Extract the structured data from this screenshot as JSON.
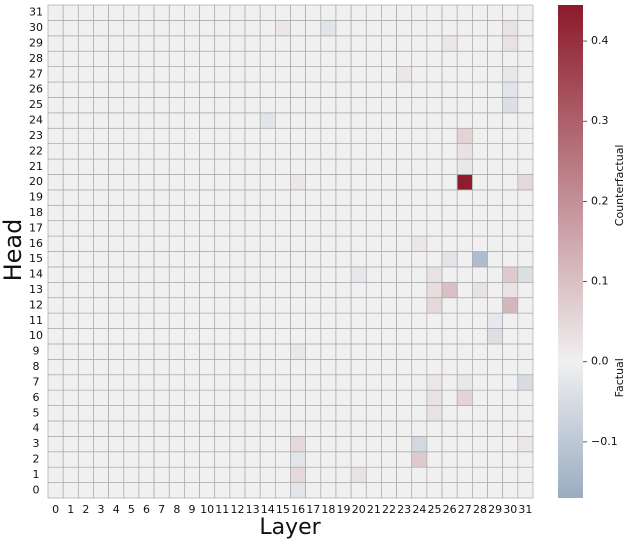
{
  "chart_data": {
    "type": "heatmap",
    "x_label": "Layer",
    "y_label": "Head",
    "x_categories": [
      0,
      1,
      2,
      3,
      4,
      5,
      6,
      7,
      8,
      9,
      10,
      11,
      12,
      13,
      14,
      15,
      16,
      17,
      18,
      19,
      20,
      21,
      22,
      23,
      24,
      25,
      26,
      27,
      28,
      29,
      30,
      31
    ],
    "y_categories": [
      0,
      1,
      2,
      3,
      4,
      5,
      6,
      7,
      8,
      9,
      10,
      11,
      12,
      13,
      14,
      15,
      16,
      17,
      18,
      19,
      20,
      21,
      22,
      23,
      24,
      25,
      26,
      27,
      28,
      29,
      30,
      31
    ],
    "values": [
      [
        0,
        0,
        0,
        0,
        0,
        0,
        0,
        0,
        0,
        0,
        0,
        0,
        0,
        0,
        0,
        0,
        -0.03,
        0,
        0,
        0,
        0,
        0,
        0,
        0,
        0,
        0,
        0,
        0,
        0,
        0,
        0,
        0
      ],
      [
        0,
        0,
        0,
        0,
        0,
        0,
        0,
        0,
        0,
        0,
        0,
        0,
        0,
        0,
        0,
        0,
        0.05,
        0,
        0,
        0,
        0.03,
        0,
        0,
        0,
        0,
        0,
        0,
        0,
        0,
        0,
        0,
        0
      ],
      [
        0,
        0,
        0,
        0,
        0,
        0,
        0,
        0,
        0,
        0,
        0,
        0,
        0,
        0,
        0,
        0,
        -0.03,
        0,
        0,
        0,
        0,
        0,
        0,
        0,
        0.08,
        0,
        0,
        0,
        0,
        0,
        0,
        0
      ],
      [
        0,
        0,
        0,
        0,
        0,
        0,
        0,
        0,
        0,
        0,
        0,
        0,
        0,
        0,
        0,
        0,
        0.05,
        0,
        0,
        0,
        0,
        0,
        0,
        0,
        -0.06,
        0,
        0,
        0,
        0,
        0,
        0,
        0.02
      ],
      [
        0,
        0,
        0,
        0,
        0,
        0,
        0,
        0,
        0,
        0,
        0,
        0,
        0,
        0,
        0,
        0,
        0,
        0,
        0,
        0,
        0,
        0,
        0,
        0,
        0,
        0,
        0,
        0,
        0,
        0,
        0,
        0
      ],
      [
        0,
        0,
        0,
        0,
        0,
        0,
        0,
        0,
        0,
        0,
        0,
        0,
        0,
        0,
        0,
        0,
        0,
        0,
        0,
        0,
        0,
        0,
        0,
        0,
        0,
        0.03,
        0,
        0,
        0,
        0,
        0,
        0
      ],
      [
        0,
        0,
        0,
        0,
        0,
        0,
        0,
        0,
        0,
        0,
        0,
        0,
        0,
        0,
        0,
        0,
        0,
        0,
        0,
        0,
        0,
        0,
        0,
        0,
        0,
        0.03,
        0,
        0.06,
        0,
        0,
        0,
        0
      ],
      [
        0,
        0,
        0,
        0,
        0,
        0,
        0,
        0,
        0,
        0,
        0,
        0,
        0,
        0,
        0,
        0,
        0,
        0,
        0,
        0,
        0,
        0,
        0,
        0,
        0,
        0.02,
        0,
        -0.02,
        0,
        0,
        0,
        -0.05
      ],
      [
        0,
        0,
        0,
        0,
        0,
        0,
        0,
        0,
        0,
        0,
        0,
        0,
        0,
        0,
        0,
        0,
        0,
        0,
        0,
        0,
        0,
        0,
        0,
        0,
        0,
        0,
        0,
        0,
        0,
        0,
        0,
        0
      ],
      [
        0,
        0,
        0,
        0,
        0,
        0,
        0,
        0,
        0,
        0,
        0,
        0,
        0,
        0,
        0,
        0,
        -0.02,
        0,
        0,
        0,
        0,
        0,
        0,
        0,
        0,
        0,
        0,
        0,
        0,
        0,
        0,
        0
      ],
      [
        0,
        0,
        0,
        0,
        0,
        0,
        0,
        0,
        0,
        0,
        0,
        0,
        0,
        0,
        0,
        0,
        0,
        0,
        0,
        0,
        0,
        0,
        0,
        0,
        0,
        0,
        0,
        0,
        0,
        -0.04,
        0,
        0
      ],
      [
        0,
        0,
        0,
        0,
        0,
        0,
        0,
        0,
        0,
        0,
        0,
        0,
        0,
        0,
        0,
        0,
        0,
        0,
        0,
        0,
        0,
        0,
        0,
        0,
        0,
        0,
        0,
        0,
        0,
        -0.02,
        0,
        0
      ],
      [
        0,
        0,
        0,
        0,
        0,
        0,
        0,
        0,
        0,
        0,
        0,
        0,
        0,
        0,
        0,
        0,
        0,
        0,
        0,
        0,
        0,
        0,
        0,
        0,
        0,
        0.05,
        0,
        0,
        0,
        0,
        0.12,
        0
      ],
      [
        0,
        0,
        0,
        0,
        0,
        0,
        0,
        0,
        0,
        0,
        0,
        0,
        0,
        0,
        0,
        0,
        0,
        0,
        0,
        0,
        0,
        0,
        0,
        0,
        0,
        0.04,
        0.1,
        0,
        0.03,
        0,
        0.03,
        0
      ],
      [
        0,
        0,
        0,
        0,
        0,
        0,
        0,
        0,
        0,
        0,
        0,
        0,
        0,
        0,
        0,
        0,
        0,
        0,
        0,
        0,
        -0.02,
        0,
        0,
        0,
        0,
        0.03,
        0,
        0,
        0,
        0,
        0.08,
        -0.04
      ],
      [
        0,
        0,
        0,
        0,
        0,
        0,
        0,
        0,
        0,
        0,
        0,
        0,
        0,
        0,
        0,
        0,
        0,
        0,
        0,
        0,
        0,
        0,
        0,
        0,
        0,
        0,
        -0.03,
        0,
        -0.13,
        0,
        0,
        0
      ],
      [
        0,
        0,
        0,
        0,
        0,
        0,
        0,
        0,
        0,
        0,
        0,
        0,
        0,
        0,
        0,
        0,
        0,
        0,
        0,
        0,
        0,
        0,
        0,
        0,
        0.02,
        0,
        0,
        0,
        0,
        0,
        0,
        0
      ],
      [
        0,
        0,
        0,
        0,
        0,
        0,
        0,
        0,
        0,
        0,
        0,
        0,
        0,
        0,
        0,
        0,
        0,
        0,
        0,
        0,
        0,
        0,
        0,
        0,
        0,
        0,
        0,
        0,
        0,
        0,
        0,
        0
      ],
      [
        0,
        0,
        0,
        0,
        0,
        0,
        0,
        0,
        0,
        0,
        0,
        0,
        0,
        0,
        0,
        0,
        0,
        0,
        0,
        0,
        0,
        0,
        0,
        0,
        0,
        0,
        0,
        0,
        0,
        0,
        0,
        0
      ],
      [
        0,
        0,
        0,
        0,
        0,
        0,
        0,
        0,
        0,
        0,
        0,
        0,
        0,
        0,
        0,
        0,
        0,
        0,
        0,
        0,
        0,
        0,
        0,
        0,
        0,
        0,
        0,
        0,
        0,
        0,
        0,
        0
      ],
      [
        0,
        0,
        0,
        0,
        0,
        0,
        0,
        0,
        0,
        0,
        0,
        0,
        0,
        0,
        0,
        0,
        0.02,
        0,
        0,
        0,
        0,
        0,
        0,
        0,
        0,
        0,
        0,
        0.44,
        0,
        0,
        0,
        0.05
      ],
      [
        0,
        0,
        0,
        0,
        0,
        0,
        0,
        0,
        0,
        0,
        0,
        0,
        0,
        0,
        0,
        0,
        0,
        0,
        0,
        0,
        0,
        0,
        0,
        0,
        0,
        0,
        0,
        -0.02,
        0,
        0,
        0,
        0
      ],
      [
        0,
        0,
        0,
        0,
        0,
        0,
        0,
        0,
        0,
        0,
        0,
        0,
        0,
        0,
        0,
        0,
        0,
        0,
        0,
        0,
        0,
        0,
        0,
        0,
        0,
        0,
        0,
        0.03,
        0,
        0,
        0,
        0
      ],
      [
        0,
        0,
        0,
        0,
        0,
        0,
        0,
        0,
        0,
        0,
        0,
        0,
        0,
        0,
        0,
        0,
        0,
        0,
        0,
        0,
        0,
        0,
        0,
        0,
        0,
        0,
        0,
        0.06,
        0,
        0,
        0,
        0
      ],
      [
        0,
        0,
        0,
        0,
        0,
        0,
        0,
        0,
        0,
        0,
        0,
        0,
        0,
        0,
        -0.03,
        0,
        0,
        0,
        0,
        0,
        0,
        0,
        0,
        0,
        0,
        0,
        0,
        0,
        0,
        0,
        0,
        0
      ],
      [
        0,
        0,
        0,
        0,
        0,
        0,
        0,
        0,
        0,
        0,
        0,
        0,
        0,
        0,
        0,
        0,
        0,
        0,
        0,
        0,
        0,
        0,
        0,
        0,
        0,
        0,
        0,
        0,
        0,
        0,
        -0.04,
        0
      ],
      [
        0,
        0,
        0,
        0,
        0,
        0,
        0,
        0,
        0,
        0,
        0,
        0,
        0,
        0,
        0,
        0,
        0,
        0,
        0,
        0,
        0,
        0,
        0,
        0,
        0,
        0,
        0,
        0,
        0,
        0,
        -0.03,
        0
      ],
      [
        0,
        0,
        0,
        0,
        0,
        0,
        0,
        0,
        0,
        0,
        0,
        0,
        0,
        0,
        0,
        0,
        0,
        0,
        0,
        0,
        0,
        0,
        0,
        0.02,
        0,
        0,
        0,
        0,
        0,
        0,
        -0.02,
        0
      ],
      [
        0,
        0,
        0,
        0,
        0,
        0,
        0,
        0,
        0,
        0,
        0,
        0,
        0,
        0,
        0,
        0,
        0,
        0,
        0,
        0,
        0,
        0,
        0,
        0,
        0,
        0,
        0,
        0,
        0,
        0,
        0,
        0
      ],
      [
        0,
        0,
        0,
        0,
        0,
        0,
        0,
        0,
        0,
        0,
        0,
        0,
        0,
        0,
        0,
        0,
        0,
        0,
        0,
        0,
        0,
        0,
        0,
        0,
        0,
        0,
        0.02,
        0,
        0,
        0,
        0.03,
        0
      ],
      [
        0,
        0,
        0,
        0,
        0,
        0,
        0,
        0,
        0,
        0,
        0,
        0,
        0,
        0,
        0,
        0.02,
        0,
        0,
        -0.03,
        0,
        0,
        0,
        0,
        0,
        0,
        0,
        0,
        0,
        0,
        0,
        0.03,
        0
      ],
      [
        0,
        0,
        0,
        0,
        0,
        0,
        0,
        0,
        0,
        0,
        0,
        0,
        0,
        0,
        0,
        0,
        0,
        0,
        0,
        0,
        0,
        0,
        0,
        0,
        0,
        0,
        0,
        0,
        0,
        0,
        0,
        0
      ]
    ],
    "colorbar": {
      "lim": [
        -0.17,
        0.445
      ],
      "ticks": [
        {
          "value": -0.1,
          "label": "−0.1"
        },
        {
          "value": 0,
          "label": "0.0"
        },
        0.1,
        0.2,
        0.3,
        0.4
      ],
      "colors": [
        "#9aacc2",
        "#f0f0f0",
        "#8c1a2a"
      ],
      "labels": [
        {
          "text": "Counterfactual",
          "value": 0.22
        },
        {
          "text": "Factual",
          "value": -0.02
        }
      ]
    },
    "grid_color": "#a8a8a8"
  }
}
